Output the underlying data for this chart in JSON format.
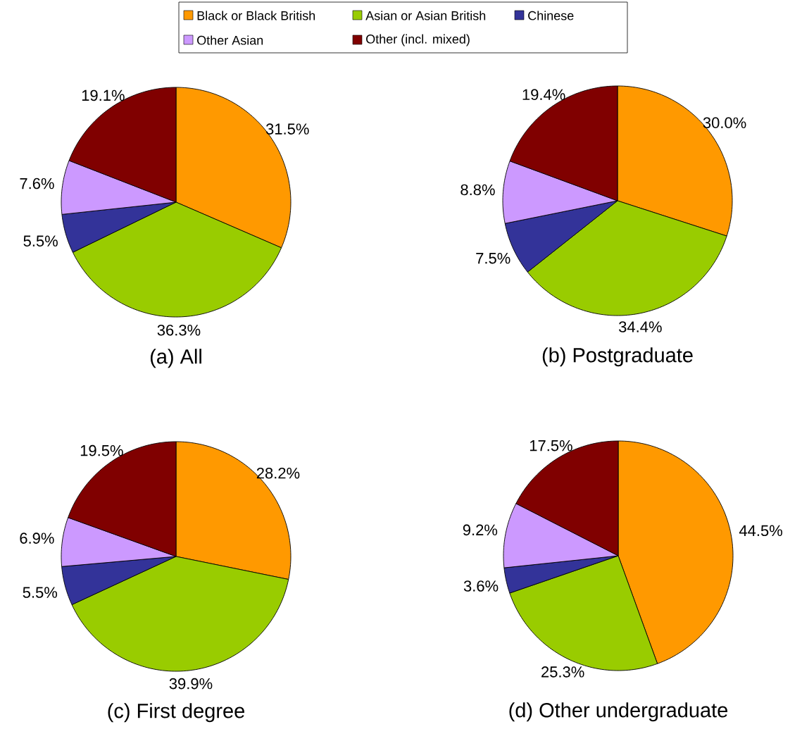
{
  "chart_data": [
    {
      "type": "pie",
      "title": "(a) All",
      "legend": "top",
      "categories": [
        "Black or Black British",
        "Asian or Asian British",
        "Chinese",
        "Other Asian",
        "Other (incl. mixed)"
      ],
      "colors": [
        "#ff9900",
        "#99cc00",
        "#333399",
        "#cc99ff",
        "#800000"
      ],
      "values": [
        31.5,
        36.3,
        5.5,
        7.6,
        19.1
      ],
      "value_labels": [
        "31.5%",
        "36.3%",
        "5.5%",
        "7.6%",
        "19.1%"
      ]
    },
    {
      "type": "pie",
      "title": "(b) Postgraduate",
      "categories": [
        null,
        null,
        null,
        null,
        null
      ],
      "colors": [
        "#ff9900",
        "#99cc00",
        "#333399",
        "#cc99ff",
        "#800000"
      ],
      "values": [
        30.0,
        34.4,
        7.5,
        8.8,
        19.4
      ],
      "value_labels": [
        "30.0%",
        "34.4%",
        "7.5%",
        "8.8%",
        "19.4%"
      ]
    },
    {
      "type": "pie",
      "title": "(c) First degree",
      "categories": [
        null,
        null,
        null,
        null,
        null
      ],
      "colors": [
        "#ff9900",
        "#99cc00",
        "#333399",
        "#cc99ff",
        "#800000"
      ],
      "values": [
        28.2,
        39.9,
        5.5,
        6.9,
        19.5
      ],
      "value_labels": [
        "28.2%",
        "39.9%",
        "5.5%",
        "6.9%",
        "19.5%"
      ]
    },
    {
      "type": "pie",
      "title": "(d) Other undergraduate",
      "categories": [
        null,
        null,
        null,
        null,
        null
      ],
      "colors": [
        "#ff9900",
        "#99cc00",
        "#333399",
        "#cc99ff",
        "#800000"
      ],
      "values": [
        44.5,
        25.3,
        3.6,
        9.2,
        17.5
      ],
      "value_labels": [
        "44.5%",
        "25.3%",
        "3.6%",
        "9.2%",
        "17.5%"
      ]
    }
  ]
}
